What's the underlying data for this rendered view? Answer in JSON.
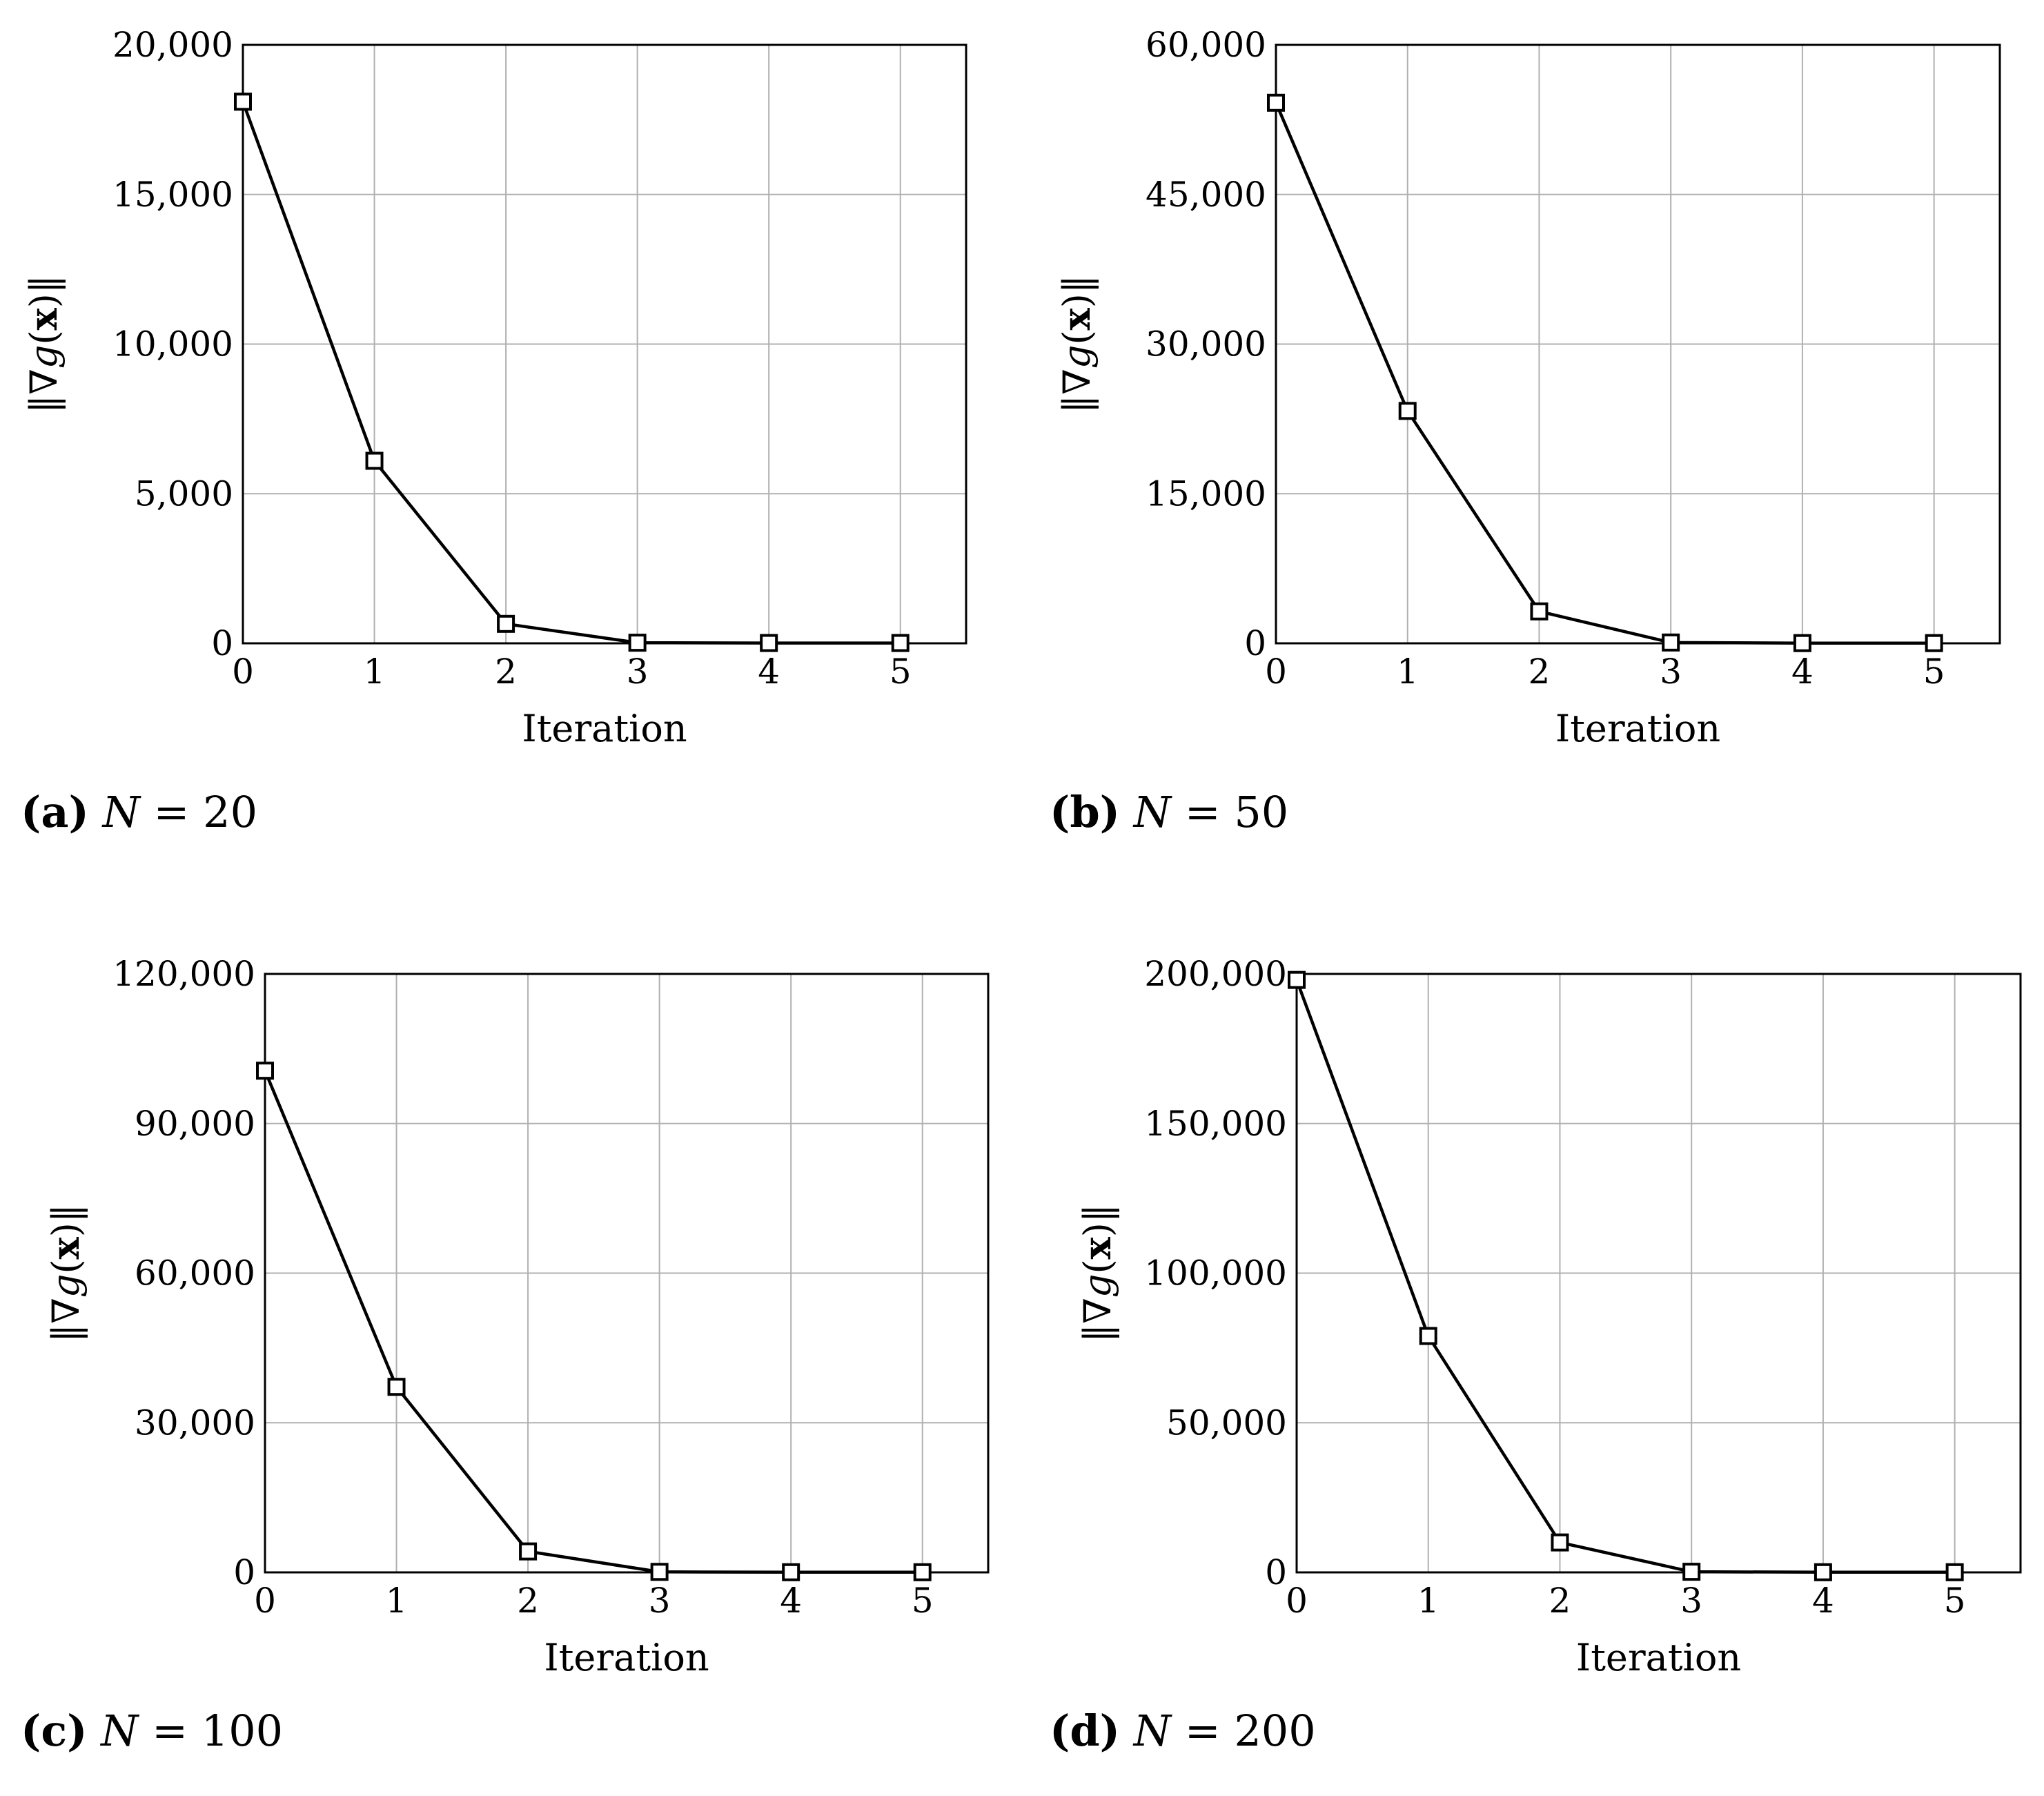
{
  "figure": {
    "ylabel_parts": [
      "‖∇",
      "g",
      "(",
      "x",
      ")‖"
    ],
    "xlabel": "Iteration"
  },
  "colors": {
    "line": "#000000",
    "grid": "#b0b0b0",
    "frame": "#000000"
  },
  "chart_data": [
    {
      "type": "line",
      "caption": {
        "tag": "(a)",
        "var": "N",
        "rest": " = 20"
      },
      "x": [
        0,
        1,
        2,
        3,
        4,
        5
      ],
      "values": [
        18100,
        6100,
        650,
        20,
        10,
        10
      ],
      "xlim": [
        0,
        5.5
      ],
      "ylim": [
        0,
        20000
      ],
      "xticks": [
        0,
        1,
        2,
        3,
        4,
        5
      ],
      "yticks": [
        0,
        5000,
        10000,
        15000,
        20000
      ],
      "ytick_labels": [
        "0",
        "5,000",
        "10,000",
        "15,000",
        "20,000"
      ],
      "xlabel": "Iteration",
      "ylabel": "‖∇g(x)‖",
      "marker": "square",
      "grid": true
    },
    {
      "type": "line",
      "caption": {
        "tag": "(b)",
        "var": "N",
        "rest": " = 50"
      },
      "x": [
        0,
        1,
        2,
        3,
        4,
        5
      ],
      "values": [
        54200,
        23300,
        3200,
        80,
        20,
        20
      ],
      "xlim": [
        0,
        5.5
      ],
      "ylim": [
        0,
        60000
      ],
      "xticks": [
        0,
        1,
        2,
        3,
        4,
        5
      ],
      "yticks": [
        0,
        15000,
        30000,
        45000,
        60000
      ],
      "ytick_labels": [
        "0",
        "15,000",
        "30,000",
        "45,000",
        "60,000"
      ],
      "xlabel": "Iteration",
      "ylabel": "‖∇g(x)‖",
      "marker": "square",
      "grid": true
    },
    {
      "type": "line",
      "caption": {
        "tag": "(c)",
        "var": "N",
        "rest": " = 100"
      },
      "x": [
        0,
        1,
        2,
        3,
        4,
        5
      ],
      "values": [
        100600,
        37200,
        4200,
        100,
        30,
        30
      ],
      "xlim": [
        0,
        5.5
      ],
      "ylim": [
        0,
        120000
      ],
      "xticks": [
        0,
        1,
        2,
        3,
        4,
        5
      ],
      "yticks": [
        0,
        30000,
        60000,
        90000,
        120000
      ],
      "ytick_labels": [
        "0",
        "30,000",
        "60,000",
        "90,000",
        "120,000"
      ],
      "xlabel": "Iteration",
      "ylabel": "‖∇g(x)‖",
      "marker": "square",
      "grid": true
    },
    {
      "type": "line",
      "caption": {
        "tag": "(d)",
        "var": "N",
        "rest": " = 200"
      },
      "x": [
        0,
        1,
        2,
        3,
        4,
        5
      ],
      "values": [
        198000,
        79000,
        10000,
        200,
        50,
        50
      ],
      "xlim": [
        0,
        5.5
      ],
      "ylim": [
        0,
        200000
      ],
      "xticks": [
        0,
        1,
        2,
        3,
        4,
        5
      ],
      "yticks": [
        0,
        50000,
        100000,
        150000,
        200000
      ],
      "ytick_labels": [
        "0",
        "50,000",
        "100,000",
        "150,000",
        "200,000"
      ],
      "xlabel": "Iteration",
      "ylabel": "‖∇g(x)‖",
      "marker": "square",
      "grid": true
    }
  ]
}
